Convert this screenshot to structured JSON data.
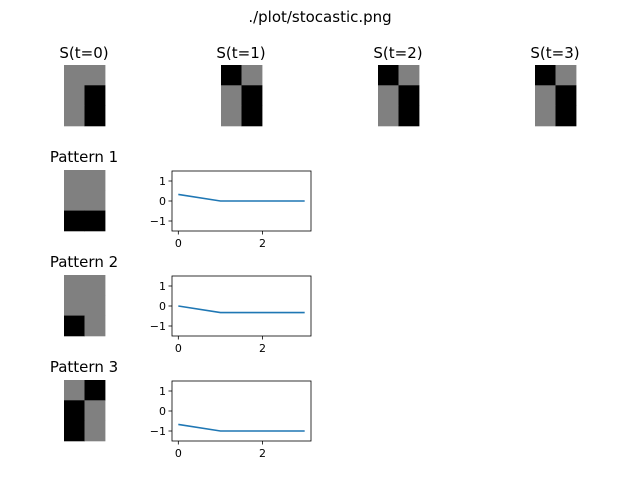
{
  "title": "./plot/stocastic.png",
  "colors": {
    "gray": "#808080",
    "black": "#000000",
    "line": "#1f77b4",
    "axis": "#000000"
  },
  "states": [
    {
      "label": "S(t=0)",
      "grid": [
        [
          1,
          1
        ],
        [
          1,
          0
        ],
        [
          1,
          0
        ]
      ]
    },
    {
      "label": "S(t=1)",
      "grid": [
        [
          0,
          1
        ],
        [
          1,
          0
        ],
        [
          1,
          0
        ]
      ]
    },
    {
      "label": "S(t=2)",
      "grid": [
        [
          0,
          1
        ],
        [
          1,
          0
        ],
        [
          1,
          0
        ]
      ]
    },
    {
      "label": "S(t=3)",
      "grid": [
        [
          0,
          1
        ],
        [
          1,
          0
        ],
        [
          1,
          0
        ]
      ]
    }
  ],
  "patterns": [
    {
      "label": "Pattern 1",
      "grid": [
        [
          1,
          1
        ],
        [
          1,
          1
        ],
        [
          0,
          0
        ]
      ]
    },
    {
      "label": "Pattern 2",
      "grid": [
        [
          1,
          1
        ],
        [
          1,
          1
        ],
        [
          0,
          1
        ]
      ]
    },
    {
      "label": "Pattern 3",
      "grid": [
        [
          1,
          0
        ],
        [
          0,
          1
        ],
        [
          0,
          1
        ]
      ]
    }
  ],
  "chart_data": [
    {
      "type": "line",
      "x": [
        0,
        1,
        2,
        3
      ],
      "values": [
        0.33,
        0.0,
        0.0,
        0.0
      ],
      "xlim": [
        -0.15,
        3.15
      ],
      "ylim": [
        -1.5,
        1.5
      ],
      "xticks": [
        "0",
        "2"
      ],
      "xtick_values": [
        0,
        2
      ],
      "yticks": [
        "1",
        "0",
        "−1"
      ],
      "ytick_values": [
        1,
        0,
        -1
      ]
    },
    {
      "type": "line",
      "x": [
        0,
        1,
        2,
        3
      ],
      "values": [
        0.0,
        -0.33,
        -0.33,
        -0.33
      ],
      "xlim": [
        -0.15,
        3.15
      ],
      "ylim": [
        -1.5,
        1.5
      ],
      "xticks": [
        "0",
        "2"
      ],
      "xtick_values": [
        0,
        2
      ],
      "yticks": [
        "1",
        "0",
        "−1"
      ],
      "ytick_values": [
        1,
        0,
        -1
      ]
    },
    {
      "type": "line",
      "x": [
        0,
        1,
        2,
        3
      ],
      "values": [
        -0.67,
        -1.0,
        -1.0,
        -1.0
      ],
      "xlim": [
        -0.15,
        3.15
      ],
      "ylim": [
        -1.5,
        1.5
      ],
      "xticks": [
        "0",
        "2"
      ],
      "xtick_values": [
        0,
        2
      ],
      "yticks": [
        "1",
        "0",
        "−1"
      ],
      "ytick_values": [
        1,
        0,
        -1
      ]
    }
  ]
}
